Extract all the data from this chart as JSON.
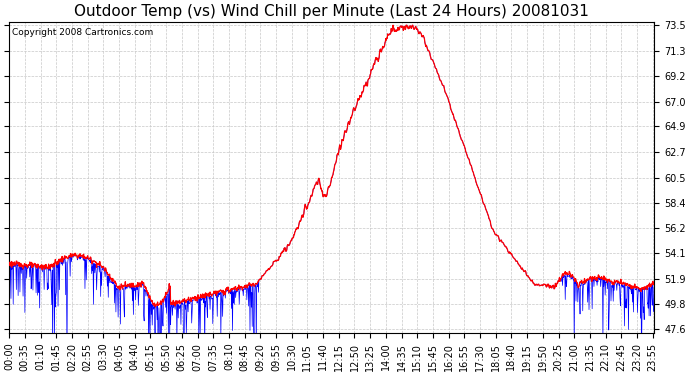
{
  "title": "Outdoor Temp (vs) Wind Chill per Minute (Last 24 Hours) 20081031",
  "copyright": "Copyright 2008 Cartronics.com",
  "yticks": [
    47.6,
    49.8,
    51.9,
    54.1,
    56.2,
    58.4,
    60.5,
    62.7,
    64.9,
    67.0,
    69.2,
    71.3,
    73.5
  ],
  "ymin": 47.6,
  "ymax": 73.5,
  "background_color": "#ffffff",
  "plot_background": "#ffffff",
  "grid_color": "#c8c8c8",
  "red_color": "#ff0000",
  "blue_color": "#0000ff",
  "title_fontsize": 11,
  "copyright_fontsize": 6.5,
  "tick_label_fontsize": 7,
  "total_minutes": 1440,
  "x_tick_interval": 35,
  "x_tick_labels": [
    "00:00",
    "00:35",
    "01:10",
    "01:45",
    "02:20",
    "02:55",
    "03:30",
    "04:05",
    "04:40",
    "05:15",
    "05:50",
    "06:25",
    "07:00",
    "07:35",
    "08:10",
    "08:45",
    "09:20",
    "09:55",
    "10:30",
    "11:05",
    "11:40",
    "12:15",
    "12:50",
    "13:25",
    "14:00",
    "14:35",
    "15:10",
    "15:45",
    "16:20",
    "16:55",
    "17:30",
    "18:05",
    "18:40",
    "19:15",
    "19:50",
    "20:25",
    "21:00",
    "21:35",
    "22:10",
    "22:45",
    "23:20",
    "23:55"
  ]
}
